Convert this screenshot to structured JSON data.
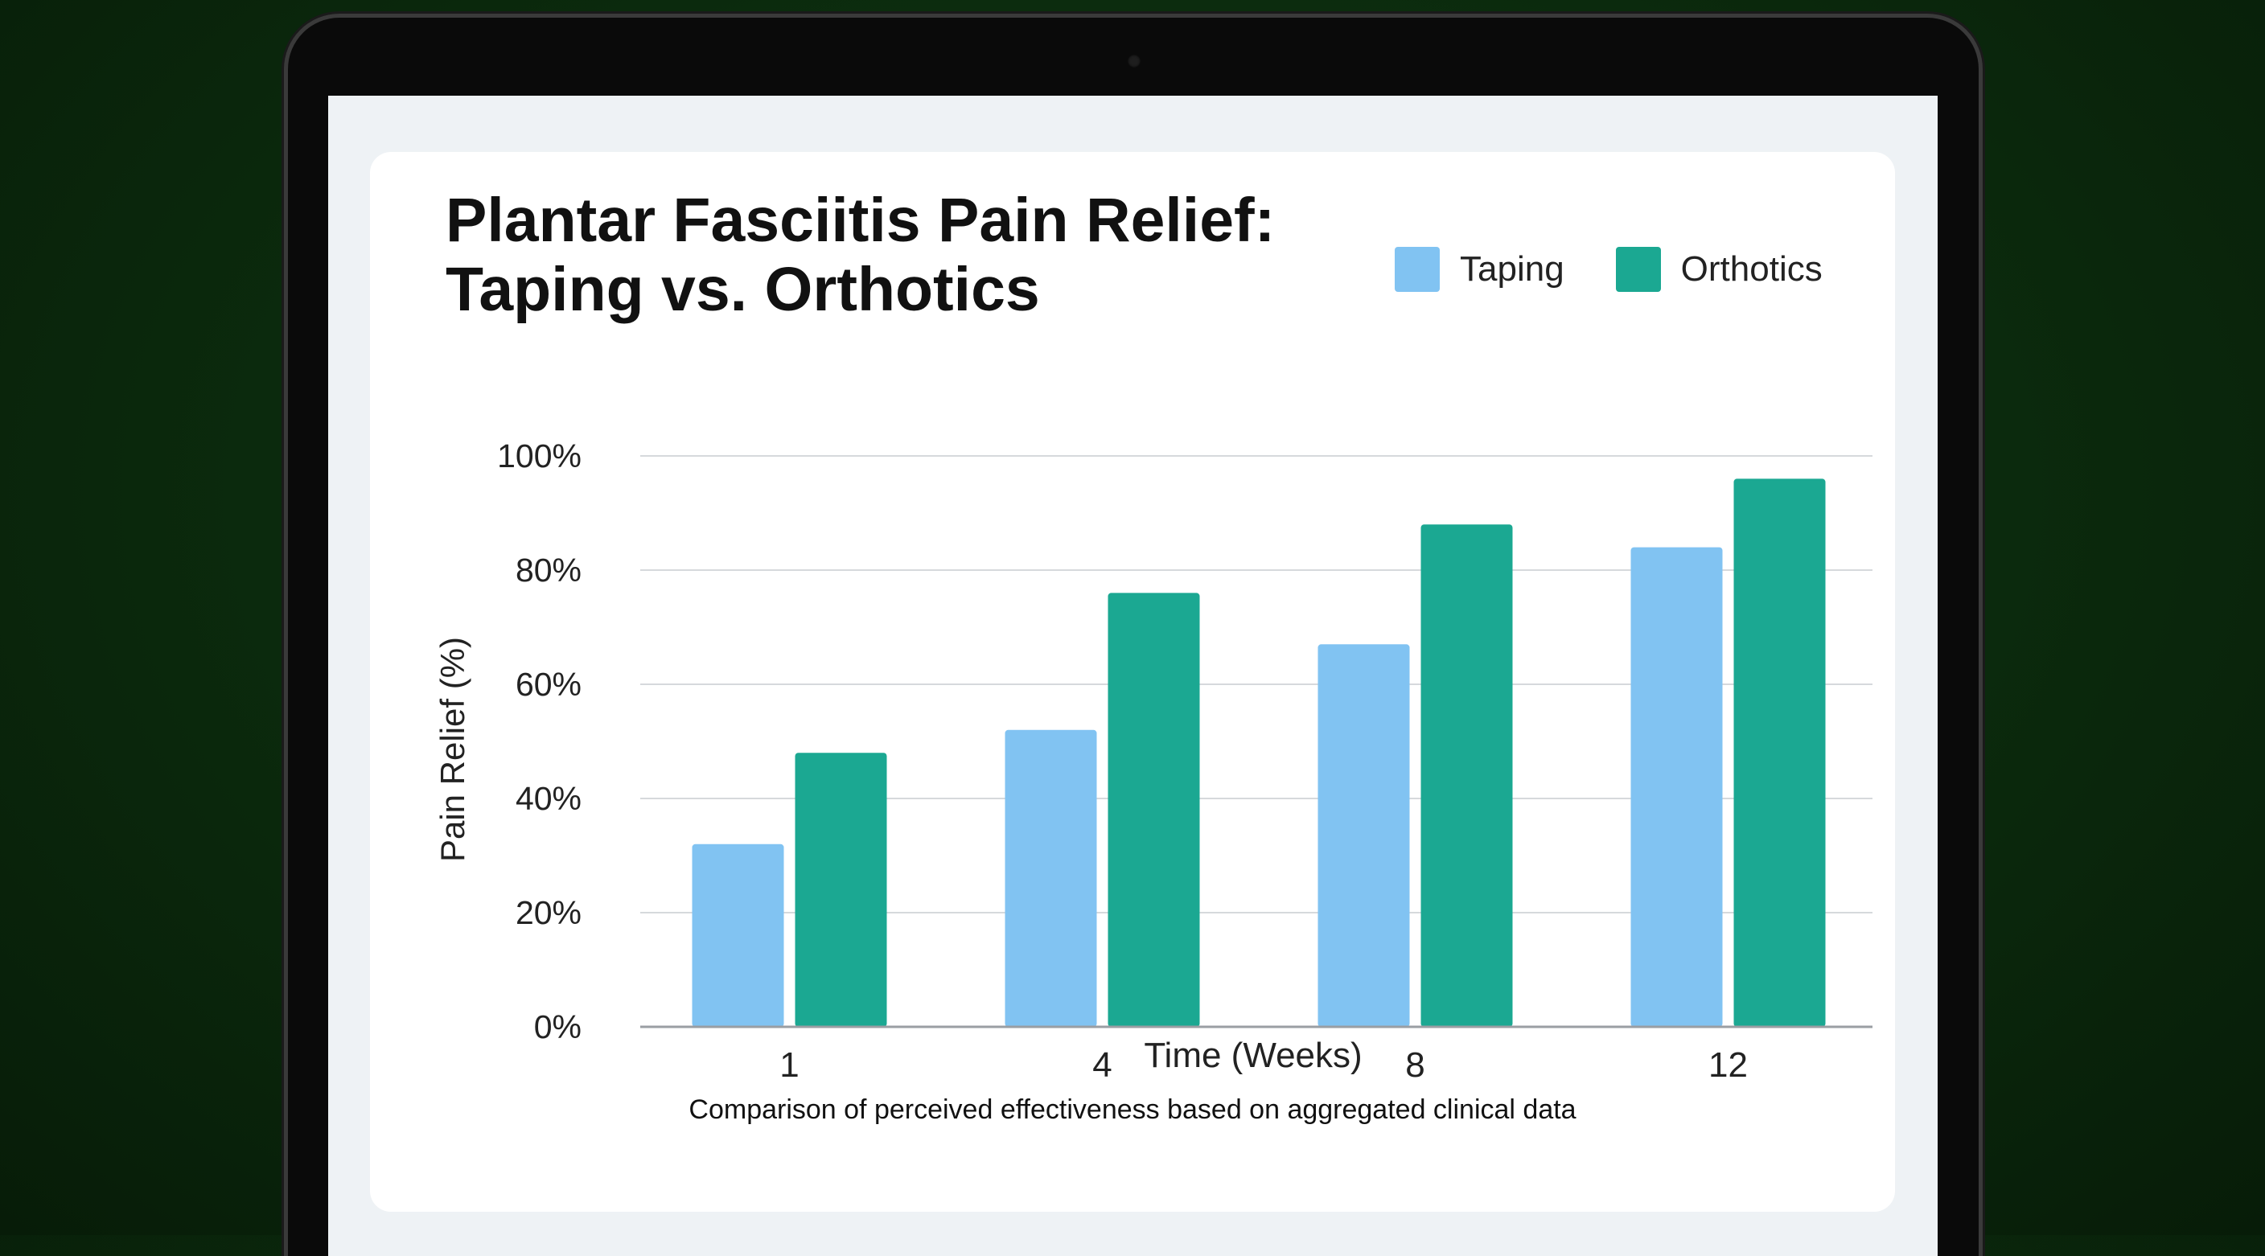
{
  "chart_data": {
    "type": "bar",
    "title_lines": [
      "Plantar Fasciitis Pain Relief:",
      "Taping vs. Orthotics"
    ],
    "xlabel": "Time (Weeks)",
    "ylabel": "Pain Relief (%)",
    "categories": [
      "1",
      "4",
      "8",
      "12"
    ],
    "series": [
      {
        "name": "Taping",
        "color": "#81c3f2",
        "values": [
          32,
          52,
          67,
          84
        ]
      },
      {
        "name": "Orthotics",
        "color": "#1ba892",
        "values": [
          48,
          76,
          88,
          96
        ]
      }
    ],
    "ylim": [
      0,
      100
    ],
    "yticks": [
      0,
      20,
      40,
      60,
      80,
      100
    ],
    "ytick_suffix": "%",
    "grid": true,
    "legend_position": "top-right",
    "caption": "Comparison of perceived effectiveness based on aggregated clinical data"
  }
}
